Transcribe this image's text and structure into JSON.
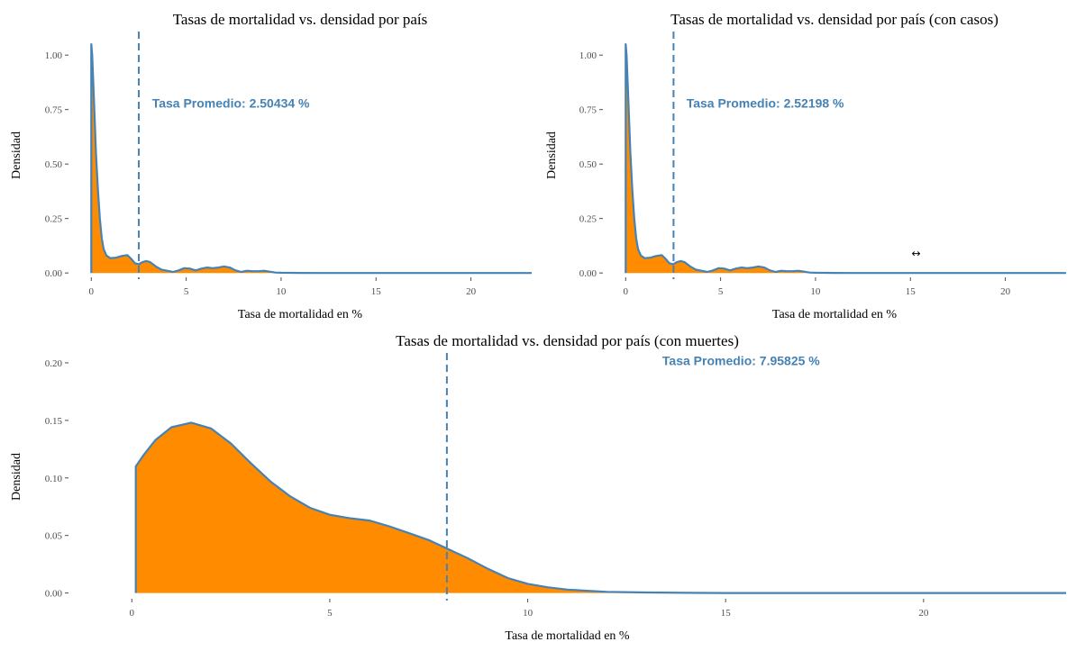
{
  "chart_data": [
    {
      "type": "area",
      "title": "Tasas de mortalidad vs. densidad por país",
      "xlabel": "Tasa de mortalidad en %",
      "ylabel": "Densidad",
      "xlim": [
        -1.2,
        23.2
      ],
      "ylim": [
        -0.02,
        1.1
      ],
      "xticks": [
        0,
        5,
        10,
        15,
        20
      ],
      "xtick_labels": [
        "0",
        "5",
        "10",
        "15",
        "20"
      ],
      "yticks": [
        0,
        0.25,
        0.5,
        0.75,
        1.0
      ],
      "ytick_labels": [
        "0.00",
        "0.25",
        "0.50",
        "0.75",
        "1.00"
      ],
      "x": [
        0,
        0.05,
        0.15,
        0.25,
        0.35,
        0.45,
        0.55,
        0.65,
        0.8,
        1.0,
        1.3,
        1.6,
        1.9,
        2.1,
        2.3,
        2.5,
        2.7,
        2.9,
        3.1,
        3.4,
        3.7,
        4.0,
        4.3,
        4.6,
        4.9,
        5.2,
        5.5,
        5.8,
        6.1,
        6.4,
        6.7,
        7.0,
        7.3,
        7.6,
        7.9,
        8.2,
        8.5,
        8.8,
        9.1,
        9.4,
        9.7,
        10.0,
        10.5,
        11.0,
        12.0,
        14.0,
        23.2
      ],
      "y": [
        1.05,
        1.0,
        0.78,
        0.55,
        0.38,
        0.25,
        0.16,
        0.11,
        0.08,
        0.068,
        0.07,
        0.078,
        0.082,
        0.065,
        0.045,
        0.04,
        0.05,
        0.055,
        0.05,
        0.03,
        0.015,
        0.01,
        0.005,
        0.012,
        0.022,
        0.02,
        0.012,
        0.02,
        0.025,
        0.022,
        0.025,
        0.03,
        0.025,
        0.012,
        0.005,
        0.01,
        0.008,
        0.008,
        0.01,
        0.006,
        0.002,
        0.001,
        0.0005,
        0.0002,
        0,
        0,
        0
      ],
      "mean_line": 2.50434,
      "annotation": "Tasa Promedio: 2.50434 %",
      "annotation_pos": [
        3.2,
        0.78
      ]
    },
    {
      "type": "area",
      "title": "Tasas de mortalidad vs. densidad por país (con casos)",
      "xlabel": "Tasa de mortalidad en %",
      "ylabel": "Densidad",
      "xlim": [
        -1.2,
        23.2
      ],
      "ylim": [
        -0.02,
        1.1
      ],
      "xticks": [
        0,
        5,
        10,
        15,
        20
      ],
      "xtick_labels": [
        "0",
        "5",
        "10",
        "15",
        "20"
      ],
      "yticks": [
        0,
        0.25,
        0.5,
        0.75,
        1.0
      ],
      "ytick_labels": [
        "0.00",
        "0.25",
        "0.50",
        "0.75",
        "1.00"
      ],
      "x": [
        0,
        0.05,
        0.15,
        0.25,
        0.35,
        0.45,
        0.55,
        0.65,
        0.8,
        1.0,
        1.3,
        1.6,
        1.9,
        2.1,
        2.3,
        2.5,
        2.7,
        2.9,
        3.1,
        3.4,
        3.7,
        4.0,
        4.3,
        4.6,
        4.9,
        5.2,
        5.5,
        5.8,
        6.1,
        6.4,
        6.7,
        7.0,
        7.3,
        7.6,
        7.9,
        8.2,
        8.5,
        8.8,
        9.1,
        9.4,
        9.7,
        10.0,
        10.5,
        11.0,
        12.0,
        14.0,
        23.2
      ],
      "y": [
        1.05,
        1.0,
        0.78,
        0.55,
        0.38,
        0.25,
        0.16,
        0.11,
        0.08,
        0.068,
        0.07,
        0.078,
        0.082,
        0.065,
        0.045,
        0.04,
        0.05,
        0.055,
        0.05,
        0.03,
        0.015,
        0.01,
        0.005,
        0.012,
        0.022,
        0.02,
        0.012,
        0.02,
        0.025,
        0.022,
        0.025,
        0.03,
        0.025,
        0.012,
        0.005,
        0.01,
        0.008,
        0.008,
        0.01,
        0.006,
        0.002,
        0.001,
        0.0005,
        0.0002,
        0,
        0,
        0
      ],
      "mean_line": 2.52198,
      "annotation": "Tasa Promedio: 2.52198 %",
      "annotation_pos": [
        3.2,
        0.78
      ],
      "cursor_icon": "resize-horizontal-icon",
      "cursor_glyph": "↔",
      "cursor_pos": [
        15.3,
        0.09
      ]
    },
    {
      "type": "area",
      "title": "Tasas de mortalidad vs. densidad por país (con muertes)",
      "xlabel": "Tasa de mortalidad en %",
      "ylabel": "Densidad",
      "xlim": [
        -1.6,
        23.6
      ],
      "ylim": [
        -0.005,
        0.207
      ],
      "xticks": [
        0,
        5,
        10,
        15,
        20
      ],
      "xtick_labels": [
        "0",
        "5",
        "10",
        "15",
        "20"
      ],
      "yticks": [
        0,
        0.05,
        0.1,
        0.15,
        0.2
      ],
      "ytick_labels": [
        "0.00",
        "0.05",
        "0.10",
        "0.15",
        "0.20"
      ],
      "x": [
        0.1,
        0.3,
        0.6,
        1.0,
        1.5,
        2.0,
        2.5,
        3.0,
        3.5,
        4.0,
        4.5,
        5.0,
        5.5,
        6.0,
        6.5,
        7.0,
        7.5,
        8.0,
        8.5,
        9.0,
        9.5,
        10.0,
        10.5,
        11.0,
        11.5,
        12.0,
        13.0,
        14.0,
        15.0,
        23.6
      ],
      "y": [
        0.11,
        0.12,
        0.133,
        0.144,
        0.148,
        0.143,
        0.13,
        0.113,
        0.097,
        0.084,
        0.074,
        0.068,
        0.065,
        0.063,
        0.058,
        0.052,
        0.046,
        0.038,
        0.03,
        0.021,
        0.013,
        0.008,
        0.005,
        0.003,
        0.002,
        0.001,
        0.0005,
        0.0002,
        0,
        0
      ],
      "mean_line": 7.95825,
      "annotation": "Tasa Promedio: 7.95825 %",
      "annotation_pos": [
        13.4,
        0.202
      ]
    }
  ],
  "colors": {
    "fill": "#ff8c00",
    "outline": "#4682b4",
    "mean_line": "#4682b4",
    "annotation": "#4682b4",
    "tick": "#4d4d4d",
    "text": "#000000"
  }
}
